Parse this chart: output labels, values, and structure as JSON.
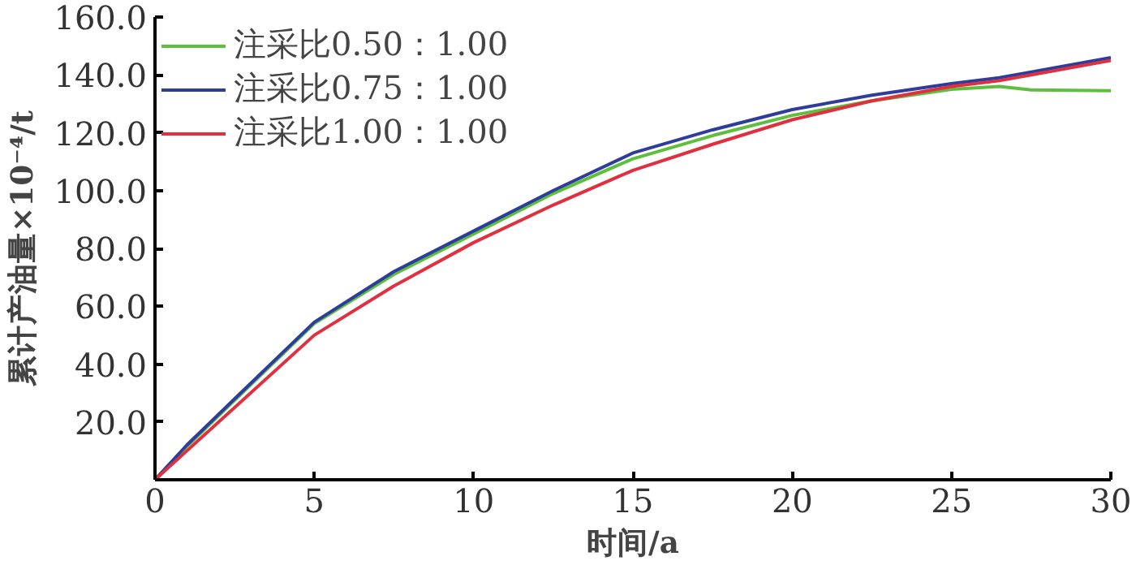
{
  "chart_data": {
    "type": "line",
    "xlabel": "时间/a",
    "ylabel": "累计产油量×10⁻⁴/t",
    "x": [
      0,
      1,
      2.5,
      5,
      7.5,
      10,
      12.5,
      15,
      17.5,
      20,
      22.5,
      25,
      26.5,
      27.5,
      30
    ],
    "series": [
      {
        "name": "注采比0.50：1.00",
        "color": "#5dbf3c",
        "values": [
          0,
          11.5,
          27.5,
          54,
          71,
          85,
          99,
          111,
          119,
          126,
          131,
          135,
          136,
          134.8,
          134.5
        ]
      },
      {
        "name": "注采比0.75：1.00",
        "color": "#2e3d9c",
        "values": [
          0,
          12,
          28,
          54.5,
          72,
          86,
          100,
          113,
          121,
          128,
          133,
          137,
          139,
          141,
          146
        ]
      },
      {
        "name": "注采比1.00：1.00",
        "color": "#e03040",
        "values": [
          0,
          10,
          25,
          50,
          67,
          82,
          95,
          107,
          116,
          124.5,
          131,
          136,
          138,
          140,
          145
        ]
      }
    ],
    "xlim": [
      0,
      30
    ],
    "xticks": [
      0,
      5,
      10,
      15,
      20,
      25,
      30
    ],
    "ylim": [
      0,
      160
    ],
    "yticks": [
      {
        "value": 20,
        "label": "20.0"
      },
      {
        "value": 40,
        "label": "40.0"
      },
      {
        "value": 60,
        "label": "60.0"
      },
      {
        "value": 80,
        "label": "80.0"
      },
      {
        "value": 100,
        "label": "100.0"
      },
      {
        "value": 120,
        "label": "120.0"
      },
      {
        "value": 140,
        "label": "140.0"
      },
      {
        "value": 160,
        "label": "160.0"
      }
    ],
    "grid": false,
    "legend": "top left"
  }
}
